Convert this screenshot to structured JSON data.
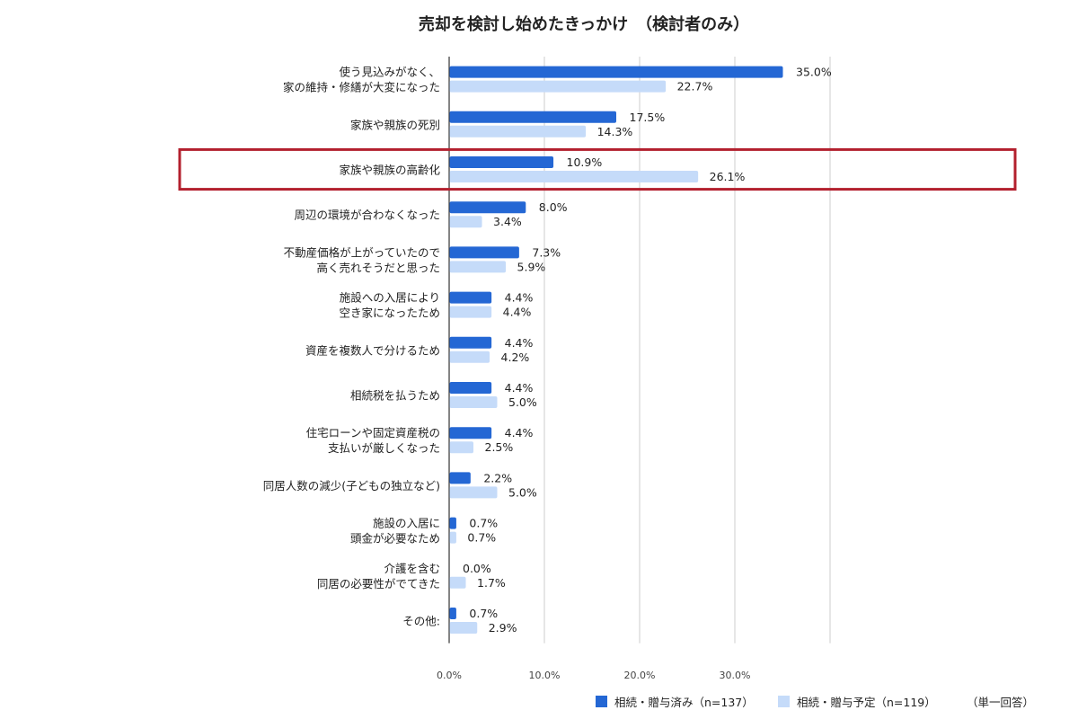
{
  "chart_data": {
    "type": "bar",
    "orientation": "horizontal",
    "title": "売却を検討し始めたきっかけ　（検討者のみ）",
    "categories": [
      [
        "使う見込みがなく、",
        "家の維持・修繕が大変になった"
      ],
      [
        "家族や親族の死別"
      ],
      [
        "家族や親族の高齢化"
      ],
      [
        "周辺の環境が合わなくなった"
      ],
      [
        "不動産価格が上がっていたので",
        "高く売れそうだと思った"
      ],
      [
        "施設への入居により",
        "空き家になったため"
      ],
      [
        "資産を複数人で分けるため"
      ],
      [
        "相続税を払うため"
      ],
      [
        "住宅ローンや固定資産税の",
        "支払いが厳しくなった"
      ],
      [
        "同居人数の減少(子どもの独立など)"
      ],
      [
        "施設の入居に",
        "頭金が必要なため"
      ],
      [
        "介護を含む",
        "同居の必要性がでてきた"
      ],
      [
        "その他:"
      ]
    ],
    "series": [
      {
        "name": "相続・贈与済み（n=137）",
        "color": "#2467d4",
        "values": [
          35.0,
          17.5,
          10.9,
          8.0,
          7.3,
          4.4,
          4.4,
          4.4,
          4.4,
          2.2,
          0.7,
          0.0,
          0.7
        ],
        "labels": [
          "35.0%",
          "17.5%",
          "10.9%",
          "8.0%",
          "7.3%",
          "4.4%",
          "4.4%",
          "4.4%",
          "4.4%",
          "2.2%",
          "0.7%",
          "0.0%",
          "0.7%"
        ]
      },
      {
        "name": "相続・贈与予定（n=119）",
        "color": "#c5dbf9",
        "values": [
          22.7,
          14.3,
          26.1,
          3.4,
          5.9,
          4.4,
          4.2,
          5.0,
          2.5,
          5.0,
          0.7,
          1.7,
          2.9
        ],
        "labels": [
          "22.7%",
          "14.3%",
          "26.1%",
          "3.4%",
          "5.9%",
          "4.4%",
          "4.2%",
          "5.0%",
          "2.5%",
          "5.0%",
          "0.7%",
          "1.7%",
          "2.9%"
        ]
      }
    ],
    "xlim": [
      0,
      40
    ],
    "xticks": [
      0,
      10,
      20,
      30
    ],
    "xtick_labels": [
      "0.0%",
      "10.0%",
      "20.0%",
      "30.0%"
    ],
    "grid": true,
    "legend_position": "bottom-right",
    "note": "（単一回答）",
    "highlight_category_index": 2,
    "highlight_color": "#b3202e"
  }
}
